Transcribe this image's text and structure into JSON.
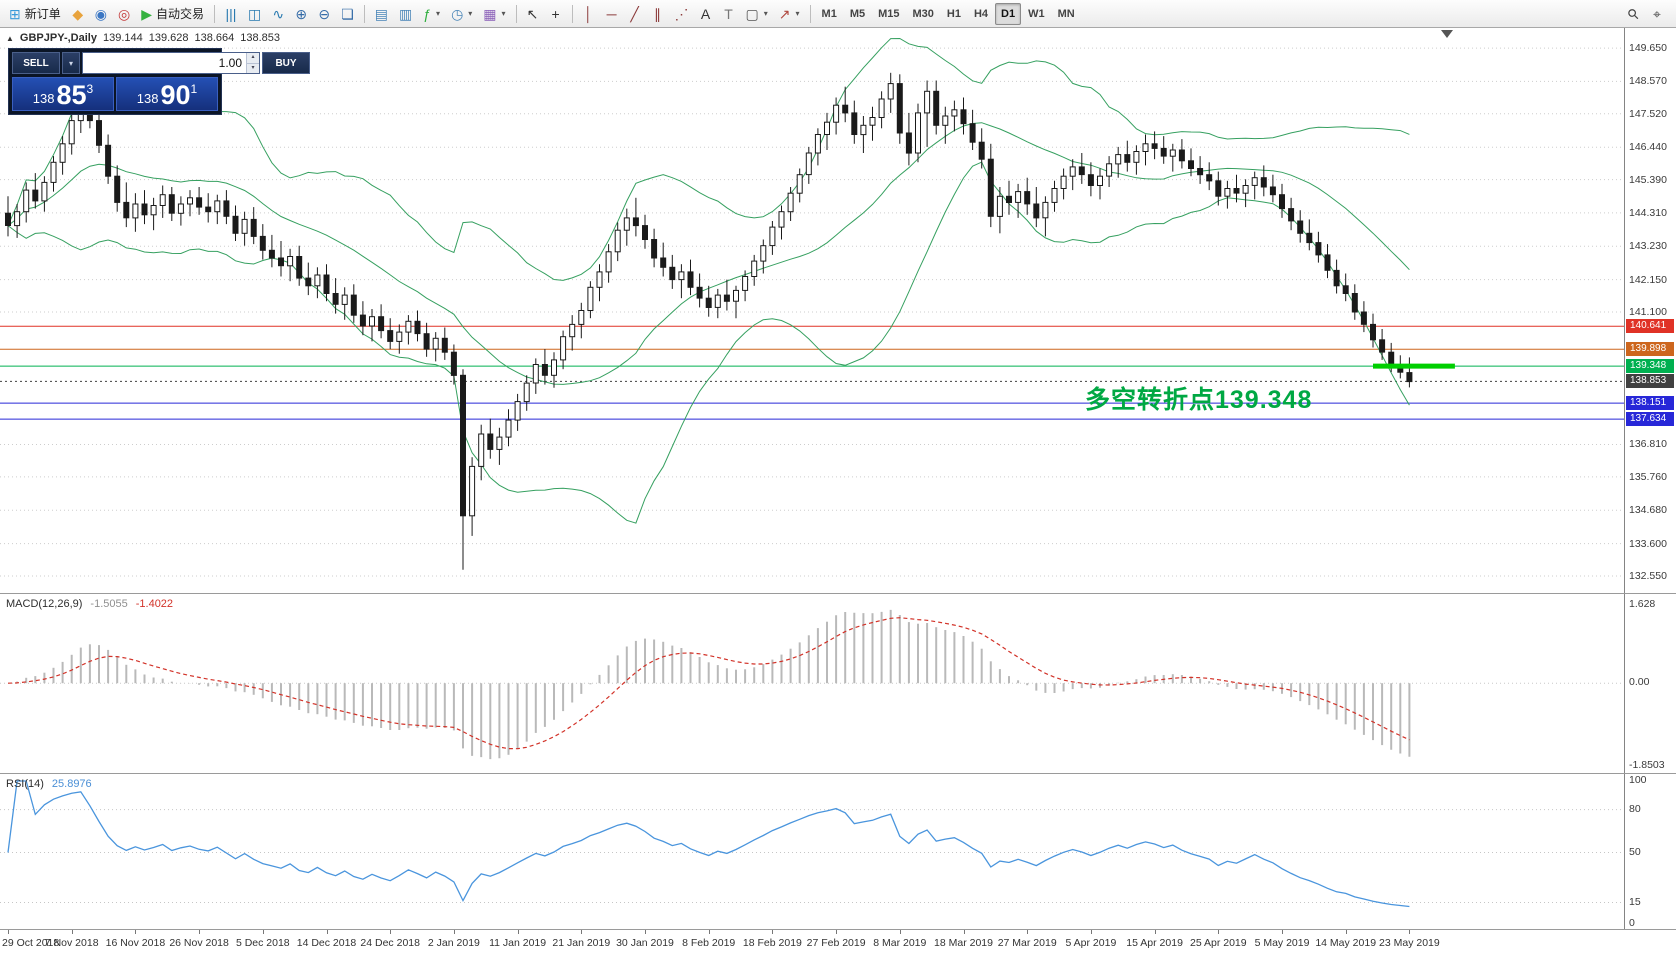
{
  "toolbar": {
    "groups": [
      [
        {
          "name": "new-order",
          "glyph": "⊞",
          "color": "#3a9ad9",
          "label": "新订单"
        },
        {
          "name": "charts-profile",
          "glyph": "◆",
          "color": "#e8a33d"
        },
        {
          "name": "market-watch",
          "glyph": "◉",
          "color": "#3b77c4"
        },
        {
          "name": "navigator",
          "glyph": "◎",
          "color": "#c43b3b"
        },
        {
          "name": "auto-trading",
          "glyph": "▶",
          "color": "#35b13f",
          "label": "自动交易"
        }
      ],
      [
        {
          "name": "bars-chart",
          "glyph": "|||",
          "color": "#2a7ab0"
        },
        {
          "name": "candlestick-chart",
          "glyph": "◫",
          "color": "#2a7ab0"
        },
        {
          "name": "line-chart",
          "glyph": "∿",
          "color": "#2a7ab0"
        },
        {
          "name": "zoom-in",
          "glyph": "⊕",
          "color": "#356ca8"
        },
        {
          "name": "zoom-out",
          "glyph": "⊖",
          "color": "#356ca8"
        },
        {
          "name": "tile-windows",
          "glyph": "❏",
          "color": "#356ca8"
        }
      ],
      [
        {
          "name": "arrange-windows",
          "glyph": "▤",
          "color": "#4a86b8"
        },
        {
          "name": "window-list",
          "glyph": "▥",
          "color": "#4a86b8"
        },
        {
          "name": "indicators-list",
          "glyph": "ƒ",
          "color": "#2fae3e",
          "dd": true
        },
        {
          "name": "periods",
          "glyph": "◷",
          "color": "#4a86b8",
          "dd": true
        },
        {
          "name": "templates",
          "glyph": "▦",
          "color": "#8a5fb8",
          "dd": true
        }
      ],
      [
        {
          "name": "cursor",
          "glyph": "↖",
          "color": "#333333"
        },
        {
          "name": "crosshair",
          "glyph": "+",
          "color": "#333333"
        }
      ],
      [
        {
          "name": "vertical-line",
          "glyph": "│",
          "color": "#8b3a3a"
        },
        {
          "name": "horizontal-line",
          "glyph": "─",
          "color": "#8b3a3a"
        },
        {
          "name": "trendline",
          "glyph": "╱",
          "color": "#8b3a3a"
        },
        {
          "name": "equidistant-channel",
          "glyph": "∥",
          "color": "#8b3a3a"
        },
        {
          "name": "fibonacci-retracement",
          "glyph": "⋰",
          "color": "#8b3a3a"
        },
        {
          "name": "text",
          "glyph": "A",
          "color": "#333333"
        },
        {
          "name": "text-label",
          "glyph": "T",
          "color": "#777777"
        },
        {
          "name": "shapes",
          "glyph": "▢",
          "color": "#555555",
          "dd": true
        },
        {
          "name": "arrows",
          "glyph": "↗",
          "color": "#b0483f",
          "dd": true
        }
      ]
    ],
    "timeframes": [
      "M1",
      "M5",
      "M15",
      "M30",
      "H1",
      "H4",
      "D1",
      "W1",
      "MN"
    ],
    "active_timeframe": "D1",
    "right": [
      {
        "name": "search",
        "glyph": "⚲",
        "color": "#444444",
        "rot": true
      },
      {
        "name": "data-window",
        "glyph": "⌖",
        "color": "#444444"
      }
    ]
  },
  "symbol_header": {
    "title": "GBPJPY-,Daily",
    "open": "139.144",
    "high": "139.628",
    "low": "138.664",
    "close": "138.853"
  },
  "trade_panel": {
    "sell_label": "SELL",
    "buy_label": "BUY",
    "volume": "1.00",
    "sell_price": {
      "small": "138",
      "big": "85",
      "sup": "3"
    },
    "buy_price": {
      "small": "138",
      "big": "90",
      "sup": "1"
    }
  },
  "annotation": {
    "text": "多空转折点139.348",
    "color": "#00a843"
  },
  "icons": {
    "dropdown": "▾",
    "spin_up": "▴",
    "spin_down": "▾",
    "symbol_marker": "▲"
  },
  "chart_data": {
    "type": "candlestick",
    "symbol": "GBPJPY-",
    "timeframe": "Daily",
    "x_axis_dates": [
      "29 Oct 2018",
      "7 Nov 2018",
      "16 Nov 2018",
      "26 Nov 2018",
      "5 Dec 2018",
      "14 Dec 2018",
      "24 Dec 2018",
      "2 Jan 2019",
      "11 Jan 2019",
      "21 Jan 2019",
      "30 Jan 2019",
      "8 Feb 2019",
      "18 Feb 2019",
      "27 Feb 2019",
      "8 Mar 2019",
      "18 Mar 2019",
      "27 Mar 2019",
      "5 Apr 2019",
      "15 Apr 2019",
      "25 Apr 2019",
      "5 May 2019",
      "14 May 2019",
      "23 May 2019"
    ],
    "bars_per_label": 7,
    "price_axis": {
      "grid": [
        149.65,
        148.57,
        147.52,
        146.44,
        145.39,
        144.31,
        143.23,
        142.15,
        141.1,
        136.81,
        135.76,
        134.68,
        133.6,
        132.55
      ]
    },
    "hlines": [
      {
        "price": 140.641,
        "color": "#e03226",
        "style": "solid"
      },
      {
        "price": 139.898,
        "color": "#cd661d",
        "style": "solid"
      },
      {
        "price": 139.348,
        "color": "#00b050",
        "style": "solid"
      },
      {
        "price": 138.853,
        "color": "#404040",
        "style": "dotted"
      },
      {
        "price": 138.151,
        "color": "#2727d8",
        "style": "solid"
      },
      {
        "price": 137.634,
        "color": "#2727d8",
        "style": "solid"
      }
    ],
    "trend_segment": {
      "price": 139.348,
      "from_bar": 150,
      "to_bar": 159,
      "color": "#00cf00",
      "width": 5
    },
    "bollinger": {
      "period": 20,
      "deviation": 2,
      "color": "#36a060"
    },
    "candle_colors": {
      "up_fill": "#ffffff",
      "down_fill": "#1a1a1a",
      "outline": "#1a1a1a"
    },
    "indicators": {
      "macd": {
        "label": "MACD(12,26,9)",
        "fast": 12,
        "slow": 26,
        "signal": 9,
        "value_main": "-1.5055",
        "value_signal": "-1.4022",
        "axis_labels": [
          "1.628",
          "0.00",
          "-1.8503"
        ],
        "histogram_color": "#b9b9b9",
        "signal_color": "#d23228"
      },
      "rsi": {
        "label": "RSI(14)",
        "period": 14,
        "value": "25.8976",
        "axis_labels": [
          100,
          80,
          50,
          15,
          0
        ],
        "levels": [
          80,
          50,
          15
        ],
        "line_color": "#4a95dd"
      }
    },
    "candles": [
      [
        144.3,
        144.85,
        143.55,
        143.9
      ],
      [
        143.9,
        144.6,
        143.5,
        144.35
      ],
      [
        144.35,
        145.3,
        144.0,
        145.05
      ],
      [
        145.05,
        145.6,
        144.45,
        144.7
      ],
      [
        144.7,
        145.5,
        144.35,
        145.3
      ],
      [
        145.3,
        146.15,
        145.0,
        145.95
      ],
      [
        145.95,
        146.8,
        145.55,
        146.55
      ],
      [
        146.55,
        147.5,
        146.2,
        147.3
      ],
      [
        147.3,
        148.1,
        146.9,
        147.85
      ],
      [
        147.85,
        148.35,
        147.05,
        147.3
      ],
      [
        147.3,
        147.6,
        146.25,
        146.5
      ],
      [
        146.5,
        146.85,
        145.25,
        145.5
      ],
      [
        145.5,
        145.85,
        144.35,
        144.65
      ],
      [
        144.65,
        145.3,
        143.85,
        144.15
      ],
      [
        144.15,
        144.95,
        143.7,
        144.6
      ],
      [
        144.6,
        145.05,
        143.95,
        144.25
      ],
      [
        144.25,
        144.8,
        143.75,
        144.55
      ],
      [
        144.55,
        145.2,
        144.15,
        144.9
      ],
      [
        144.9,
        145.15,
        144.05,
        144.3
      ],
      [
        144.3,
        144.85,
        143.9,
        144.6
      ],
      [
        144.6,
        145.05,
        144.2,
        144.8
      ],
      [
        144.8,
        145.15,
        144.25,
        144.5
      ],
      [
        144.5,
        144.95,
        144.0,
        144.35
      ],
      [
        144.35,
        144.9,
        143.95,
        144.7
      ],
      [
        144.7,
        145.05,
        143.95,
        144.2
      ],
      [
        144.2,
        144.55,
        143.4,
        143.65
      ],
      [
        143.65,
        144.35,
        143.25,
        144.1
      ],
      [
        144.1,
        144.5,
        143.3,
        143.55
      ],
      [
        143.55,
        143.95,
        142.8,
        143.1
      ],
      [
        143.1,
        143.6,
        142.55,
        142.85
      ],
      [
        142.85,
        143.4,
        142.25,
        142.6
      ],
      [
        142.6,
        143.15,
        142.1,
        142.9
      ],
      [
        142.9,
        143.25,
        141.95,
        142.2
      ],
      [
        142.2,
        142.7,
        141.65,
        141.95
      ],
      [
        141.95,
        142.55,
        141.55,
        142.3
      ],
      [
        142.3,
        142.65,
        141.45,
        141.7
      ],
      [
        141.7,
        142.2,
        141.05,
        141.35
      ],
      [
        141.35,
        141.9,
        140.85,
        141.65
      ],
      [
        141.65,
        142.0,
        140.75,
        141.0
      ],
      [
        141.0,
        141.45,
        140.35,
        140.65
      ],
      [
        140.65,
        141.2,
        140.15,
        140.95
      ],
      [
        140.95,
        141.35,
        140.25,
        140.5
      ],
      [
        140.5,
        140.9,
        139.9,
        140.15
      ],
      [
        140.15,
        140.7,
        139.75,
        140.45
      ],
      [
        140.45,
        141.0,
        140.05,
        140.8
      ],
      [
        140.8,
        141.15,
        140.15,
        140.4
      ],
      [
        140.4,
        140.75,
        139.65,
        139.9
      ],
      [
        139.9,
        140.45,
        139.5,
        140.25
      ],
      [
        140.25,
        140.6,
        139.55,
        139.8
      ],
      [
        139.8,
        140.05,
        138.75,
        139.05
      ],
      [
        139.05,
        139.25,
        132.75,
        134.5
      ],
      [
        134.5,
        136.4,
        133.85,
        136.1
      ],
      [
        136.1,
        137.45,
        135.65,
        137.15
      ],
      [
        137.15,
        137.65,
        136.35,
        136.65
      ],
      [
        136.65,
        137.35,
        136.15,
        137.05
      ],
      [
        137.05,
        137.95,
        136.75,
        137.6
      ],
      [
        137.6,
        138.45,
        137.25,
        138.2
      ],
      [
        138.2,
        139.05,
        137.9,
        138.8
      ],
      [
        138.8,
        139.6,
        138.45,
        139.4
      ],
      [
        139.4,
        139.9,
        138.75,
        139.05
      ],
      [
        139.05,
        139.8,
        138.65,
        139.55
      ],
      [
        139.55,
        140.5,
        139.25,
        140.3
      ],
      [
        140.3,
        141.0,
        139.85,
        140.7
      ],
      [
        140.7,
        141.4,
        140.25,
        141.15
      ],
      [
        141.15,
        142.1,
        140.9,
        141.9
      ],
      [
        141.9,
        142.65,
        141.45,
        142.4
      ],
      [
        142.4,
        143.3,
        142.05,
        143.05
      ],
      [
        143.05,
        144.0,
        142.75,
        143.75
      ],
      [
        143.75,
        144.45,
        143.25,
        144.15
      ],
      [
        144.15,
        144.8,
        143.55,
        143.9
      ],
      [
        143.9,
        144.25,
        143.15,
        143.45
      ],
      [
        143.45,
        143.8,
        142.55,
        142.85
      ],
      [
        142.85,
        143.35,
        142.25,
        142.55
      ],
      [
        142.55,
        142.95,
        141.85,
        142.15
      ],
      [
        142.15,
        142.65,
        141.55,
        142.4
      ],
      [
        142.4,
        142.8,
        141.65,
        141.9
      ],
      [
        141.9,
        142.35,
        141.25,
        141.55
      ],
      [
        141.55,
        141.95,
        140.95,
        141.25
      ],
      [
        141.25,
        141.85,
        140.9,
        141.65
      ],
      [
        141.65,
        142.15,
        141.15,
        141.45
      ],
      [
        141.45,
        141.95,
        140.9,
        141.8
      ],
      [
        141.8,
        142.45,
        141.45,
        142.25
      ],
      [
        142.25,
        142.95,
        141.95,
        142.75
      ],
      [
        142.75,
        143.45,
        142.35,
        143.25
      ],
      [
        143.25,
        144.05,
        142.95,
        143.85
      ],
      [
        143.85,
        144.55,
        143.45,
        144.35
      ],
      [
        144.35,
        145.15,
        144.05,
        144.95
      ],
      [
        144.95,
        145.75,
        144.65,
        145.55
      ],
      [
        145.55,
        146.45,
        145.25,
        146.25
      ],
      [
        146.25,
        147.05,
        145.85,
        146.85
      ],
      [
        146.85,
        147.55,
        146.35,
        147.25
      ],
      [
        147.25,
        148.05,
        146.85,
        147.8
      ],
      [
        147.8,
        148.4,
        147.25,
        147.55
      ],
      [
        147.55,
        147.95,
        146.55,
        146.85
      ],
      [
        146.85,
        147.45,
        146.25,
        147.15
      ],
      [
        147.15,
        147.75,
        146.65,
        147.4
      ],
      [
        147.4,
        148.25,
        147.05,
        148.0
      ],
      [
        148.0,
        148.85,
        147.55,
        148.5
      ],
      [
        148.5,
        148.8,
        146.55,
        146.9
      ],
      [
        146.9,
        147.55,
        145.85,
        146.25
      ],
      [
        146.25,
        147.85,
        145.95,
        147.55
      ],
      [
        147.55,
        148.6,
        146.45,
        148.25
      ],
      [
        148.25,
        148.6,
        146.85,
        147.15
      ],
      [
        147.15,
        147.75,
        146.55,
        147.45
      ],
      [
        147.45,
        147.95,
        146.95,
        147.65
      ],
      [
        147.65,
        148.05,
        146.85,
        147.2
      ],
      [
        147.2,
        147.65,
        146.35,
        146.6
      ],
      [
        146.6,
        147.05,
        145.75,
        146.05
      ],
      [
        146.05,
        146.55,
        143.85,
        144.2
      ],
      [
        144.2,
        145.15,
        143.65,
        144.85
      ],
      [
        144.85,
        145.35,
        144.25,
        144.65
      ],
      [
        144.65,
        145.25,
        144.15,
        145.0
      ],
      [
        145.0,
        145.45,
        144.25,
        144.6
      ],
      [
        144.6,
        145.15,
        143.85,
        144.15
      ],
      [
        144.15,
        144.85,
        143.55,
        144.65
      ],
      [
        144.65,
        145.35,
        144.35,
        145.1
      ],
      [
        145.1,
        145.75,
        144.75,
        145.5
      ],
      [
        145.5,
        146.05,
        145.05,
        145.8
      ],
      [
        145.8,
        146.25,
        145.25,
        145.55
      ],
      [
        145.55,
        145.95,
        144.85,
        145.2
      ],
      [
        145.2,
        145.75,
        144.75,
        145.5
      ],
      [
        145.5,
        146.15,
        145.15,
        145.9
      ],
      [
        145.9,
        146.45,
        145.45,
        146.2
      ],
      [
        146.2,
        146.65,
        145.65,
        145.95
      ],
      [
        145.95,
        146.5,
        145.55,
        146.3
      ],
      [
        146.3,
        146.85,
        145.85,
        146.55
      ],
      [
        146.55,
        146.95,
        146.05,
        146.4
      ],
      [
        146.4,
        146.8,
        145.9,
        146.15
      ],
      [
        146.15,
        146.55,
        145.65,
        146.35
      ],
      [
        146.35,
        146.7,
        145.75,
        146.0
      ],
      [
        146.0,
        146.4,
        145.5,
        145.75
      ],
      [
        145.75,
        146.15,
        145.25,
        145.55
      ],
      [
        145.55,
        145.95,
        145.05,
        145.35
      ],
      [
        145.35,
        145.65,
        144.55,
        144.85
      ],
      [
        144.85,
        145.35,
        144.45,
        145.1
      ],
      [
        145.1,
        145.55,
        144.65,
        144.95
      ],
      [
        144.95,
        145.4,
        144.5,
        145.2
      ],
      [
        145.2,
        145.65,
        144.75,
        145.45
      ],
      [
        145.45,
        145.85,
        144.85,
        145.15
      ],
      [
        145.15,
        145.55,
        144.65,
        144.9
      ],
      [
        144.9,
        145.25,
        144.15,
        144.45
      ],
      [
        144.45,
        144.8,
        143.75,
        144.05
      ],
      [
        144.05,
        144.4,
        143.35,
        143.65
      ],
      [
        143.65,
        144.1,
        143.1,
        143.35
      ],
      [
        143.35,
        143.7,
        142.7,
        142.95
      ],
      [
        142.95,
        143.3,
        142.2,
        142.45
      ],
      [
        142.45,
        142.8,
        141.7,
        141.95
      ],
      [
        141.95,
        142.35,
        141.45,
        141.7
      ],
      [
        141.7,
        142.0,
        140.85,
        141.1
      ],
      [
        141.1,
        141.45,
        140.45,
        140.7
      ],
      [
        140.7,
        141.05,
        139.95,
        140.2
      ],
      [
        140.2,
        140.55,
        139.55,
        139.8
      ],
      [
        139.8,
        140.1,
        139.15,
        139.4
      ],
      [
        139.4,
        139.7,
        138.95,
        139.15
      ],
      [
        139.14,
        139.63,
        138.66,
        138.85
      ]
    ]
  }
}
